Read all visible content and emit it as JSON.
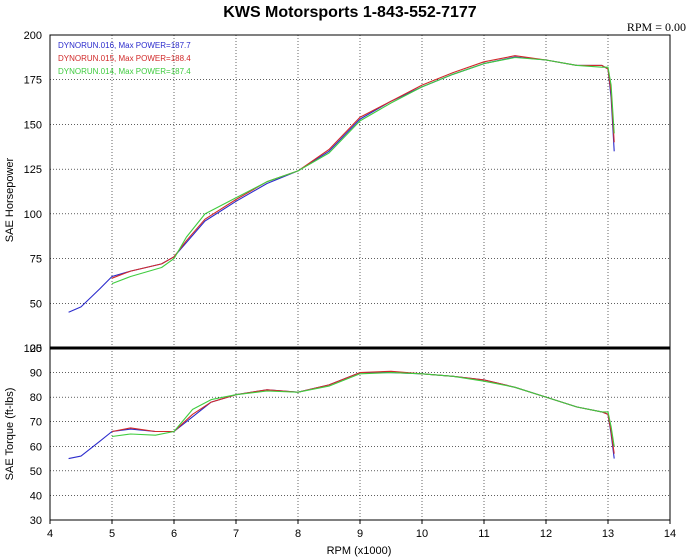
{
  "header": {
    "title": "KWS Motorsports  1-843-552-7177",
    "rpm_readout": "RPM = 0.00"
  },
  "colors": {
    "run016": "#2b2bcc",
    "run015": "#d12a2a",
    "run014": "#3fcc3f"
  },
  "chart_data": [
    {
      "type": "line",
      "ylabel": "SAE Horsepower",
      "xlabel": "",
      "xlim": [
        4,
        14
      ],
      "ylim": [
        25,
        200
      ],
      "yticks": [
        "25",
        "50",
        "75",
        "100",
        "125",
        "150",
        "175",
        "200"
      ],
      "grid": true,
      "legend": "top-left",
      "series": [
        {
          "name": "DYNORUN.016, Max POWER=187.7",
          "color": "#2b2bcc",
          "x": [
            4.3,
            4.5,
            4.8,
            5.0,
            5.3,
            5.8,
            6.0,
            6.2,
            6.5,
            7.0,
            7.5,
            8.0,
            8.5,
            9.0,
            9.5,
            10.0,
            10.5,
            11.0,
            11.5,
            12.0,
            12.5,
            12.9,
            13.0,
            13.05,
            13.1
          ],
          "y": [
            45,
            48,
            58,
            65,
            68,
            72,
            76,
            84,
            96,
            107,
            117,
            124,
            135,
            153,
            163,
            171,
            178,
            184,
            187.7,
            186,
            183,
            183,
            181,
            165,
            135
          ]
        },
        {
          "name": "DYNORUN.015, Max POWER=188.4",
          "color": "#d12a2a",
          "x": [
            5.0,
            5.3,
            5.8,
            6.0,
            6.2,
            6.5,
            7.0,
            7.5,
            8.0,
            8.5,
            9.0,
            9.5,
            10.0,
            10.5,
            11.0,
            11.5,
            12.0,
            12.5,
            12.9,
            13.0,
            13.05,
            13.1
          ],
          "y": [
            64,
            68,
            72,
            76,
            85,
            97,
            108,
            118,
            124,
            136,
            154,
            163,
            172,
            179,
            185,
            188.4,
            186,
            183,
            183,
            181,
            168,
            140
          ]
        },
        {
          "name": "DYNORUN.014, Max POWER=187.4",
          "color": "#3fcc3f",
          "x": [
            5.0,
            5.3,
            5.8,
            6.0,
            6.2,
            6.5,
            7.0,
            7.5,
            8.0,
            8.5,
            9.0,
            9.5,
            10.0,
            10.5,
            11.0,
            11.5,
            12.0,
            12.5,
            12.9,
            13.0,
            13.05,
            13.1
          ],
          "y": [
            61,
            65,
            70,
            75,
            87,
            100,
            109,
            118,
            124,
            134,
            152,
            162,
            171,
            178,
            184,
            187.4,
            186,
            183,
            182,
            182,
            172,
            145
          ]
        }
      ]
    },
    {
      "type": "line",
      "ylabel": "SAE Torque (ft-lbs)",
      "xlabel": "RPM (x1000)",
      "xlim": [
        4,
        14
      ],
      "ylim": [
        30,
        100
      ],
      "xticks": [
        "4",
        "5",
        "6",
        "7",
        "8",
        "9",
        "10",
        "11",
        "12",
        "13",
        "14"
      ],
      "yticks": [
        "30",
        "40",
        "50",
        "60",
        "70",
        "80",
        "90",
        "100"
      ],
      "grid": true,
      "series": [
        {
          "name": "DYNORUN.016",
          "color": "#2b2bcc",
          "x": [
            4.3,
            4.5,
            4.8,
            5.0,
            5.3,
            5.7,
            6.0,
            6.3,
            6.6,
            7.0,
            7.5,
            8.0,
            8.5,
            9.0,
            9.5,
            10.0,
            10.5,
            11.0,
            11.5,
            12.0,
            12.5,
            12.9,
            13.0,
            13.05,
            13.1
          ],
          "y": [
            55,
            56,
            62,
            66,
            67,
            66,
            66,
            72,
            78,
            81,
            83,
            82,
            85,
            90,
            90,
            89.5,
            88.5,
            87,
            84,
            80,
            76,
            74,
            73,
            65,
            55
          ]
        },
        {
          "name": "DYNORUN.015",
          "color": "#d12a2a",
          "x": [
            5.0,
            5.3,
            5.7,
            6.0,
            6.3,
            6.6,
            7.0,
            7.5,
            8.0,
            8.5,
            9.0,
            9.5,
            10.0,
            10.5,
            11.0,
            11.5,
            12.0,
            12.5,
            12.9,
            13.0,
            13.05,
            13.1
          ],
          "y": [
            66,
            67.5,
            66,
            66,
            73,
            78,
            81,
            83,
            82,
            85,
            90,
            90.5,
            89.5,
            88.5,
            87,
            84,
            80,
            76,
            74,
            73,
            66,
            57
          ]
        },
        {
          "name": "DYNORUN.014",
          "color": "#3fcc3f",
          "x": [
            5.0,
            5.3,
            5.7,
            6.0,
            6.3,
            6.6,
            7.0,
            7.5,
            8.0,
            8.5,
            9.0,
            9.5,
            10.0,
            10.5,
            11.0,
            11.5,
            12.0,
            12.5,
            12.9,
            13.0,
            13.05,
            13.1
          ],
          "y": [
            64,
            65,
            64.5,
            66,
            75,
            79,
            81,
            82.5,
            82,
            84.5,
            89.5,
            90,
            89.5,
            88.5,
            86.5,
            84,
            80,
            76,
            74,
            74,
            68,
            60
          ]
        }
      ]
    }
  ]
}
